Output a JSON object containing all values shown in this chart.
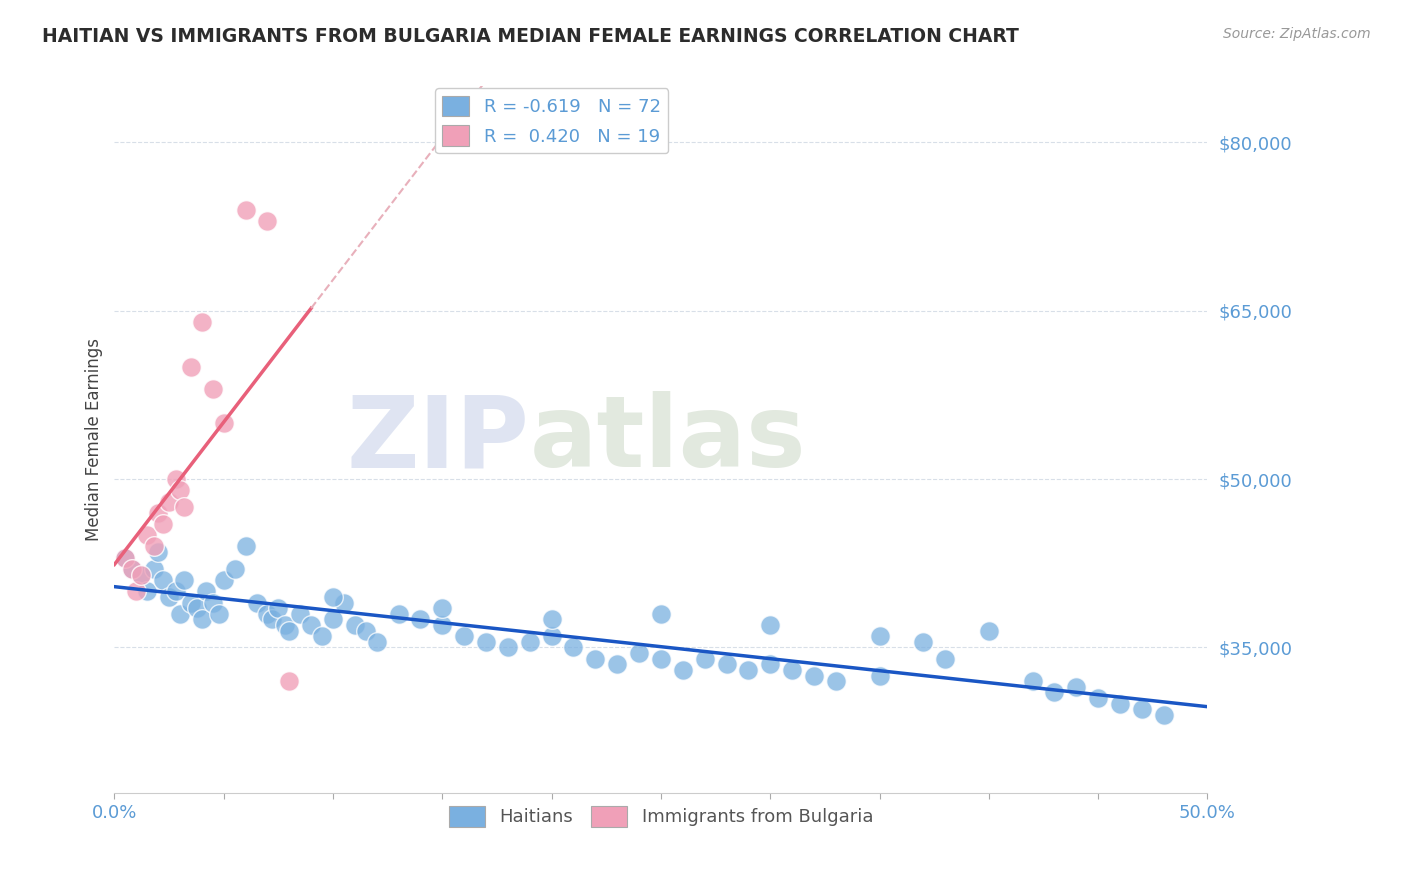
{
  "title": "HAITIAN VS IMMIGRANTS FROM BULGARIA MEDIAN FEMALE EARNINGS CORRELATION CHART",
  "source": "Source: ZipAtlas.com",
  "ylabel": "Median Female Earnings",
  "xmin": 0.0,
  "xmax": 0.5,
  "ymin": 22000,
  "ymax": 85000,
  "yticks": [
    35000,
    50000,
    65000,
    80000
  ],
  "ytick_labels": [
    "$35,000",
    "$50,000",
    "$65,000",
    "$80,000"
  ],
  "xticks": [
    0.0,
    0.05,
    0.1,
    0.15,
    0.2,
    0.25,
    0.3,
    0.35,
    0.4,
    0.45,
    0.5
  ],
  "xtick_labels_show": [
    "0.0%",
    "",
    "",
    "",
    "",
    "",
    "",
    "",
    "",
    "",
    "50.0%"
  ],
  "blue_color": "#7ab0e0",
  "pink_color": "#f0a0b8",
  "blue_line_color": "#1a56c4",
  "pink_line_color": "#e8607a",
  "pink_dash_color": "#e8b0bb",
  "legend_blue_label": "R = -0.619   N = 72",
  "legend_pink_label": "R =  0.420   N = 19",
  "haitians_label": "Haitians",
  "bulgaria_label": "Immigrants from Bulgaria",
  "R_blue": -0.619,
  "N_blue": 72,
  "R_pink": 0.42,
  "N_pink": 19,
  "watermark_zip": "ZIP",
  "watermark_atlas": "atlas",
  "title_color": "#2c2c2c",
  "axis_label_color": "#444444",
  "tick_label_color": "#5b9bd5",
  "grid_color": "#d8dfe8",
  "background_color": "#ffffff",
  "blue_x": [
    0.005,
    0.008,
    0.012,
    0.015,
    0.018,
    0.02,
    0.022,
    0.025,
    0.028,
    0.03,
    0.032,
    0.035,
    0.038,
    0.04,
    0.042,
    0.045,
    0.048,
    0.05,
    0.055,
    0.06,
    0.065,
    0.07,
    0.072,
    0.075,
    0.078,
    0.08,
    0.085,
    0.09,
    0.095,
    0.1,
    0.105,
    0.11,
    0.115,
    0.12,
    0.13,
    0.14,
    0.15,
    0.16,
    0.17,
    0.18,
    0.19,
    0.2,
    0.21,
    0.22,
    0.23,
    0.24,
    0.25,
    0.26,
    0.27,
    0.28,
    0.29,
    0.3,
    0.31,
    0.32,
    0.33,
    0.35,
    0.37,
    0.38,
    0.4,
    0.42,
    0.43,
    0.44,
    0.45,
    0.46,
    0.47,
    0.48,
    0.3,
    0.25,
    0.2,
    0.35,
    0.15,
    0.1
  ],
  "blue_y": [
    43000,
    42000,
    41500,
    40000,
    42000,
    43500,
    41000,
    39500,
    40000,
    38000,
    41000,
    39000,
    38500,
    37500,
    40000,
    39000,
    38000,
    41000,
    42000,
    44000,
    39000,
    38000,
    37500,
    38500,
    37000,
    36500,
    38000,
    37000,
    36000,
    37500,
    39000,
    37000,
    36500,
    35500,
    38000,
    37500,
    37000,
    36000,
    35500,
    35000,
    35500,
    36000,
    35000,
    34000,
    33500,
    34500,
    34000,
    33000,
    34000,
    33500,
    33000,
    33500,
    33000,
    32500,
    32000,
    32500,
    35500,
    34000,
    36500,
    32000,
    31000,
    31500,
    30500,
    30000,
    29500,
    29000,
    37000,
    38000,
    37500,
    36000,
    38500,
    39500
  ],
  "pink_x": [
    0.005,
    0.008,
    0.01,
    0.012,
    0.015,
    0.018,
    0.02,
    0.022,
    0.025,
    0.028,
    0.03,
    0.032,
    0.035,
    0.04,
    0.045,
    0.05,
    0.06,
    0.07,
    0.08
  ],
  "pink_y": [
    43000,
    42000,
    40000,
    41500,
    45000,
    44000,
    47000,
    46000,
    48000,
    50000,
    49000,
    47500,
    60000,
    64000,
    58000,
    55000,
    74000,
    73000,
    32000
  ]
}
